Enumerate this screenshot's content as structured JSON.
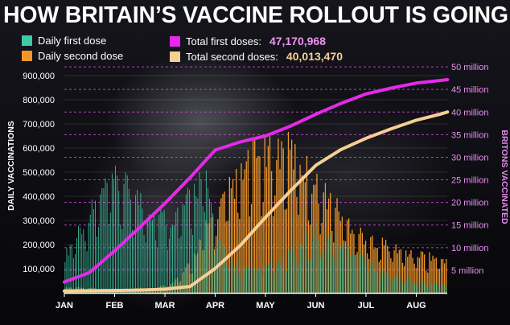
{
  "headline": "HOW BRITAIN’S VACCINE ROLLOUT IS GOING",
  "legend": {
    "daily_first": "Daily first dose",
    "daily_second": "Daily second dose",
    "total_first": "Total first doses:",
    "total_second": "Total second doses:",
    "total_first_value": "47,170,968",
    "total_second_value": "40,013,470"
  },
  "colors": {
    "daily_first": "#3fc9a6",
    "daily_second": "#f0972a",
    "total_first": "#e42ae8",
    "total_second": "#f6cf95",
    "right_axis_text": "#e68ff0",
    "title": "#ffffff"
  },
  "chart_data": {
    "type": "bar+line",
    "x_ticks": [
      "JAN",
      "FEB",
      "MAR",
      "APR",
      "MAY",
      "JUN",
      "JUL",
      "AUG"
    ],
    "left_axis": {
      "label": "DAILY VACCINATIONS",
      "ylim": [
        0,
        1000000
      ],
      "ticks": [
        "100,000",
        "200,000",
        "300,000",
        "400,000",
        "500,000",
        "600,000",
        "700,000",
        "800,000",
        "900,000"
      ]
    },
    "right_axis": {
      "label": "BRITONS VACCINATED",
      "ylim": [
        0,
        55000000
      ],
      "ticks": [
        "5 million",
        "10 million",
        "15 million",
        "20 million",
        "25 million",
        "30 million",
        "35 million",
        "40 million",
        "45 million",
        "50 million"
      ]
    },
    "series": [
      {
        "name": "Daily first dose",
        "kind": "bar",
        "month_index": [
          0,
          0.25,
          0.5,
          0.75,
          1.0,
          1.25,
          1.5,
          1.75,
          2.0,
          2.25,
          2.5,
          2.75,
          3.0,
          3.25,
          3.5,
          3.75,
          4.0,
          4.25,
          4.5,
          4.75,
          5.0,
          5.25,
          5.5,
          5.75,
          6.0,
          6.25,
          6.5,
          6.75,
          7.0,
          7.25,
          7.5
        ],
        "values": [
          150000,
          260000,
          330000,
          420000,
          460000,
          430000,
          380000,
          330000,
          310000,
          330000,
          400000,
          500000,
          260000,
          130000,
          100000,
          90000,
          110000,
          130000,
          170000,
          220000,
          260000,
          230000,
          200000,
          170000,
          130000,
          90000,
          70000,
          60000,
          50000,
          40000,
          35000
        ]
      },
      {
        "name": "Daily second dose",
        "kind": "bar",
        "month_index": [
          0,
          0.25,
          0.5,
          0.75,
          1.0,
          1.25,
          1.5,
          1.75,
          2.0,
          2.25,
          2.5,
          2.75,
          3.0,
          3.25,
          3.5,
          3.75,
          4.0,
          4.25,
          4.5,
          4.75,
          5.0,
          5.25,
          5.5,
          5.75,
          6.0,
          6.25,
          6.5,
          6.75,
          7.0,
          7.25,
          7.5
        ],
        "values": [
          20000,
          25000,
          20000,
          15000,
          15000,
          15000,
          20000,
          20000,
          30000,
          60000,
          120000,
          250000,
          330000,
          420000,
          480000,
          560000,
          560000,
          590000,
          580000,
          520000,
          440000,
          390000,
          320000,
          270000,
          220000,
          210000,
          190000,
          170000,
          160000,
          150000,
          140000
        ]
      },
      {
        "name": "Total first doses",
        "kind": "line",
        "month_index": [
          0,
          0.5,
          1.0,
          1.5,
          2.0,
          2.5,
          3.0,
          3.5,
          4.0,
          4.5,
          5.0,
          5.5,
          6.0,
          6.5,
          7.0,
          7.5,
          7.62
        ],
        "values": [
          2400000,
          4500000,
          9300000,
          14500000,
          19800000,
          25500000,
          31600000,
          33400000,
          34700000,
          36900000,
          39500000,
          41900000,
          44000000,
          45300000,
          46400000,
          47000000,
          47170968
        ]
      },
      {
        "name": "Total second doses",
        "kind": "line",
        "month_index": [
          0,
          0.5,
          1.0,
          1.5,
          2.0,
          2.5,
          3.0,
          3.5,
          4.0,
          4.5,
          5.0,
          5.5,
          6.0,
          6.5,
          7.0,
          7.5,
          7.62
        ],
        "values": [
          400000,
          460000,
          520000,
          600000,
          800000,
          1400000,
          5400000,
          10500000,
          16700000,
          22600000,
          28200000,
          31700000,
          34200000,
          36300000,
          38200000,
          39600000,
          40013470
        ]
      }
    ]
  }
}
